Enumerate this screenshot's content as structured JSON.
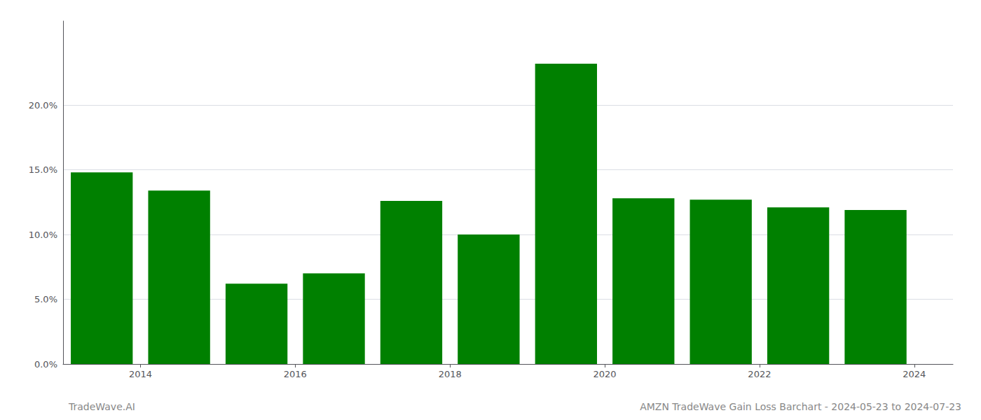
{
  "chart_data": {
    "type": "bar",
    "x": [
      2013.5,
      2014.5,
      2015.5,
      2016.5,
      2017.5,
      2018.5,
      2019.5,
      2020.5,
      2021.5,
      2022.5,
      2023.5
    ],
    "values": [
      0.148,
      0.134,
      0.062,
      0.07,
      0.126,
      0.1,
      0.232,
      0.128,
      0.127,
      0.121,
      0.119
    ],
    "color": "#008000",
    "xlim": [
      2013.0,
      2024.5
    ],
    "xticks": [
      2014,
      2016,
      2018,
      2020,
      2022,
      2024
    ],
    "ylim": [
      0.0,
      0.265
    ],
    "yticks": [
      {
        "value": 0.0,
        "label": "0.0%"
      },
      {
        "value": 0.05,
        "label": "5.0%"
      },
      {
        "value": 0.1,
        "label": "10.0%"
      },
      {
        "value": 0.15,
        "label": "15.0%"
      },
      {
        "value": 0.2,
        "label": "20.0%"
      }
    ],
    "grid": true,
    "annotations": [
      "TradeWave.AI",
      "AMZN TradeWave Gain Loss Barchart - 2024-05-23 to 2024-07-23"
    ]
  }
}
